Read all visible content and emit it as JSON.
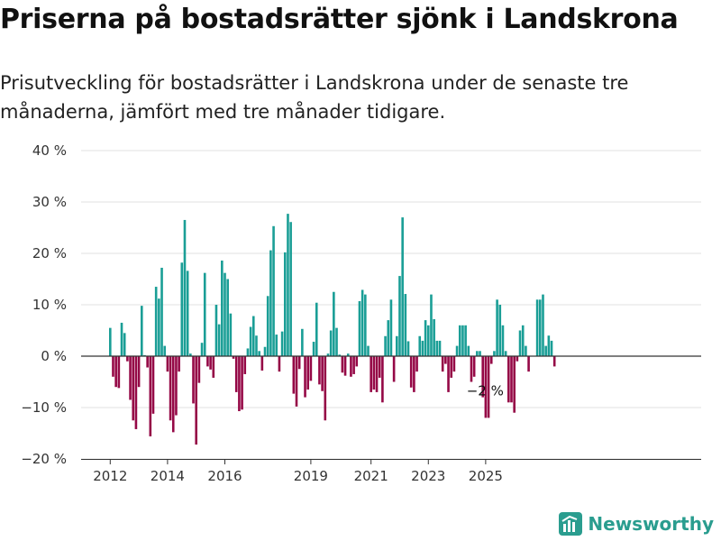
{
  "title": "Priserna på bostadsrätter sjönk i Landskrona",
  "subtitle": "Prisutveckling för bostadsrätter i Landskrona under de senaste tre månaderna, jämfört med tre månader tidigare.",
  "brand": {
    "name": "Newsworthy",
    "icon": "newsworthy-logo-icon"
  },
  "colors": {
    "positive": "#1a9e96",
    "negative": "#950846",
    "grid": "#e2e2e2",
    "axis": "#333333"
  },
  "chart_data": {
    "type": "bar",
    "title": "",
    "xlabel": "",
    "ylabel": "",
    "ylim": [
      -20,
      40
    ],
    "ytick_values": [
      -20,
      -10,
      0,
      10,
      20,
      30,
      40
    ],
    "ytick_labels": [
      "−20 %",
      "−10 %",
      "0 %",
      "10 %",
      "20 %",
      "30 %",
      "40 %"
    ],
    "xtick_labels": [
      "2012",
      "2014",
      "2016",
      "2019",
      "2021",
      "2023",
      "2025"
    ],
    "xtick_index": [
      0,
      20,
      40,
      70,
      91,
      111,
      131
    ],
    "grid": true,
    "annotation": {
      "text": "−2 %",
      "value": -2,
      "index": 131
    },
    "series": [
      {
        "values": [
          5.5,
          -4,
          -6,
          -6.2,
          6.5,
          4.5,
          -1,
          -8.5,
          -12.5,
          -14.2,
          -6,
          9.8,
          0.2,
          -2.2,
          -15.6,
          -11.2,
          13.5,
          11.2,
          17.2,
          2,
          -3,
          -12.5,
          -14.8,
          -11.5,
          -3,
          18.2,
          26.5,
          16.6,
          0.5,
          -9.2,
          -17.2,
          -5.2,
          2.6,
          16.2,
          -2,
          -2.6,
          -4.2,
          10,
          6.2,
          18.6,
          16.2,
          15,
          8.3,
          -0.5,
          -7,
          -10.7,
          -10.4,
          -3.5,
          1.5,
          5.7,
          7.8,
          4,
          1,
          -2.8,
          1.8,
          11.7,
          20.6,
          25.3,
          4.2,
          -3,
          4.8,
          20.2,
          27.7,
          26.1,
          -7.3,
          -9.8,
          -2.5,
          5.3,
          -8,
          -6.5,
          -4.8,
          2.8,
          10.4,
          -5.5,
          -6.8,
          -12.5,
          0.5,
          5,
          12.5,
          5.5,
          0.3,
          -3.2,
          -3.8,
          0.5,
          -4,
          -3.5,
          -2,
          10.7,
          12.9,
          12,
          2,
          -7,
          -6.5,
          -7,
          -4.2,
          -9,
          3.9,
          7,
          11,
          -5,
          3.9,
          15.6,
          27,
          12.1,
          2.9,
          -6.1,
          -7,
          -3,
          3.9,
          3,
          7,
          6,
          12,
          7.2,
          3,
          3,
          -3,
          -1.5,
          -7,
          -4.2,
          -3,
          2,
          6,
          6,
          6,
          2,
          -5,
          -4,
          1,
          1,
          -8,
          -12,
          -12,
          -1.5,
          1,
          11,
          10,
          6,
          1,
          -9,
          -9,
          -11,
          -1,
          5,
          6,
          2,
          -3,
          0,
          0,
          11,
          11,
          12,
          2,
          4,
          3,
          -2
        ]
      }
    ]
  }
}
